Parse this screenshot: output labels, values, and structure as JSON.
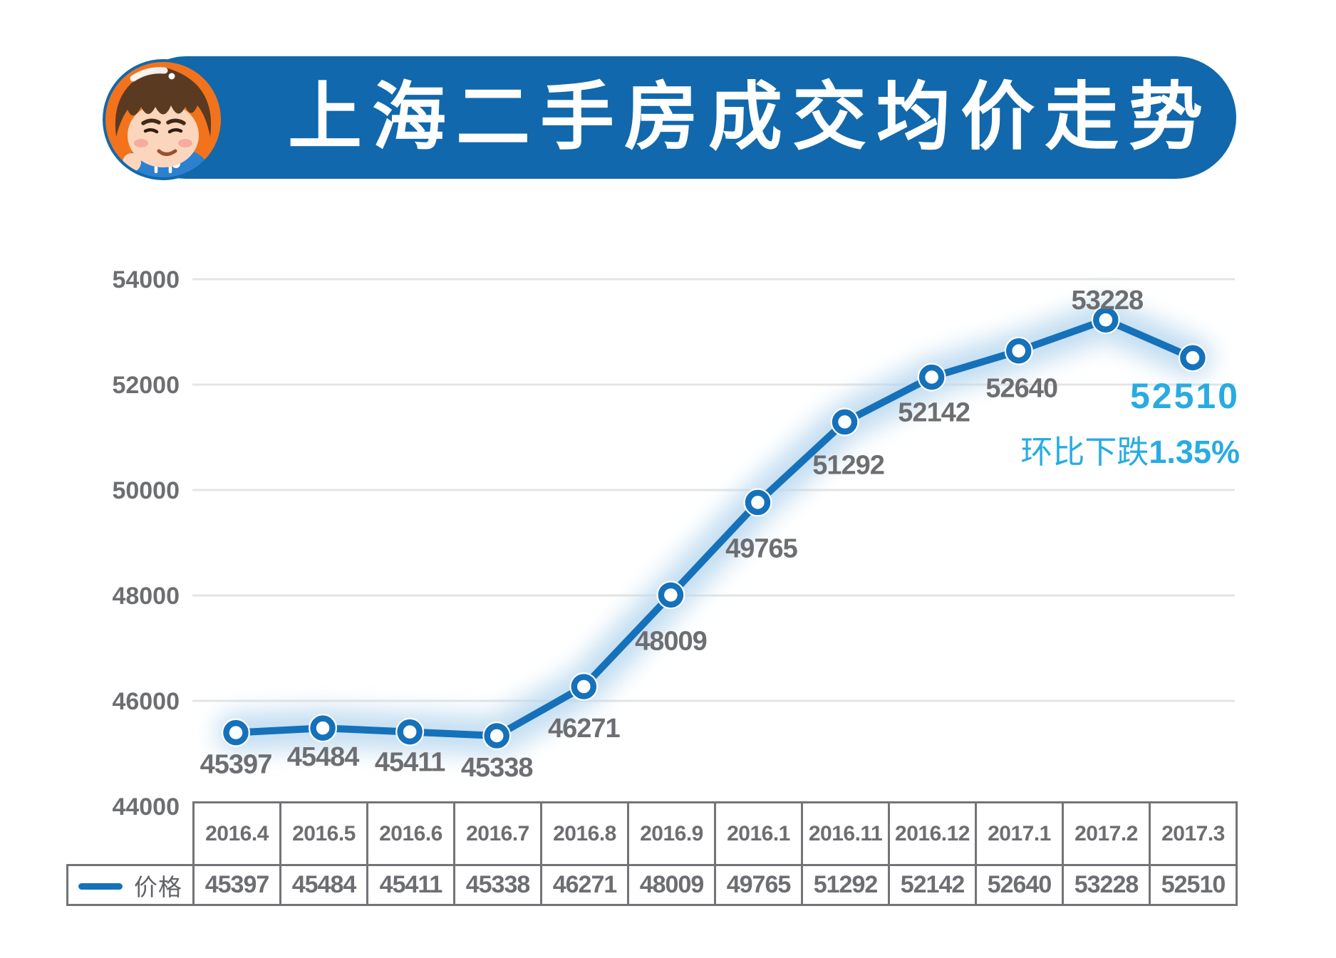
{
  "header": {
    "title": "上海二手房成交均价走势",
    "banner_color": "#1168AC",
    "avatar": {
      "bg_color": "#F2731C",
      "hair_color": "#5B3A22",
      "skin_color": "#FBD6BC",
      "hoodie_color": "#2C80CF",
      "blush_color": "#F59E98"
    }
  },
  "chart_data": {
    "type": "line",
    "title": "上海二手房成交均价走势",
    "categories": [
      "2016.4",
      "2016.5",
      "2016.6",
      "2016.7",
      "2016.8",
      "2016.9",
      "2016.1",
      "2016.11",
      "2016.12",
      "2017.1",
      "2017.2",
      "2017.3"
    ],
    "series": [
      {
        "name": "价格",
        "values": [
          45397,
          45484,
          45411,
          45338,
          46271,
          48009,
          49765,
          51292,
          52142,
          52640,
          53228,
          52510
        ]
      }
    ],
    "ylim": [
      44000,
      54000
    ],
    "ytick_interval": 2000,
    "yticks": [
      "54000",
      "52000",
      "50000",
      "48000",
      "46000",
      "44000"
    ],
    "grid": true,
    "legend_position": "bottom-left-table",
    "line_color": "#1571BA",
    "glow_color": "#B9D8EF",
    "marker_fill": "#FFFFFF",
    "gridline_color": "#E4E4E4",
    "axis_label_color": "#6D6E71",
    "data_label_color": "#6D6E71",
    "label_offsets": [
      [
        0,
        44
      ],
      [
        0,
        40
      ],
      [
        0,
        42
      ],
      [
        0,
        44
      ],
      [
        0,
        58
      ],
      [
        0,
        64
      ],
      [
        5,
        64
      ],
      [
        5,
        60
      ],
      [
        3,
        49
      ],
      [
        4,
        52
      ],
      [
        2,
        -28
      ],
      null
    ],
    "highlight": {
      "value_label": "52510",
      "note_prefix": "环比下跌",
      "note_value": "1.35%",
      "color": "#29ABE2"
    }
  }
}
